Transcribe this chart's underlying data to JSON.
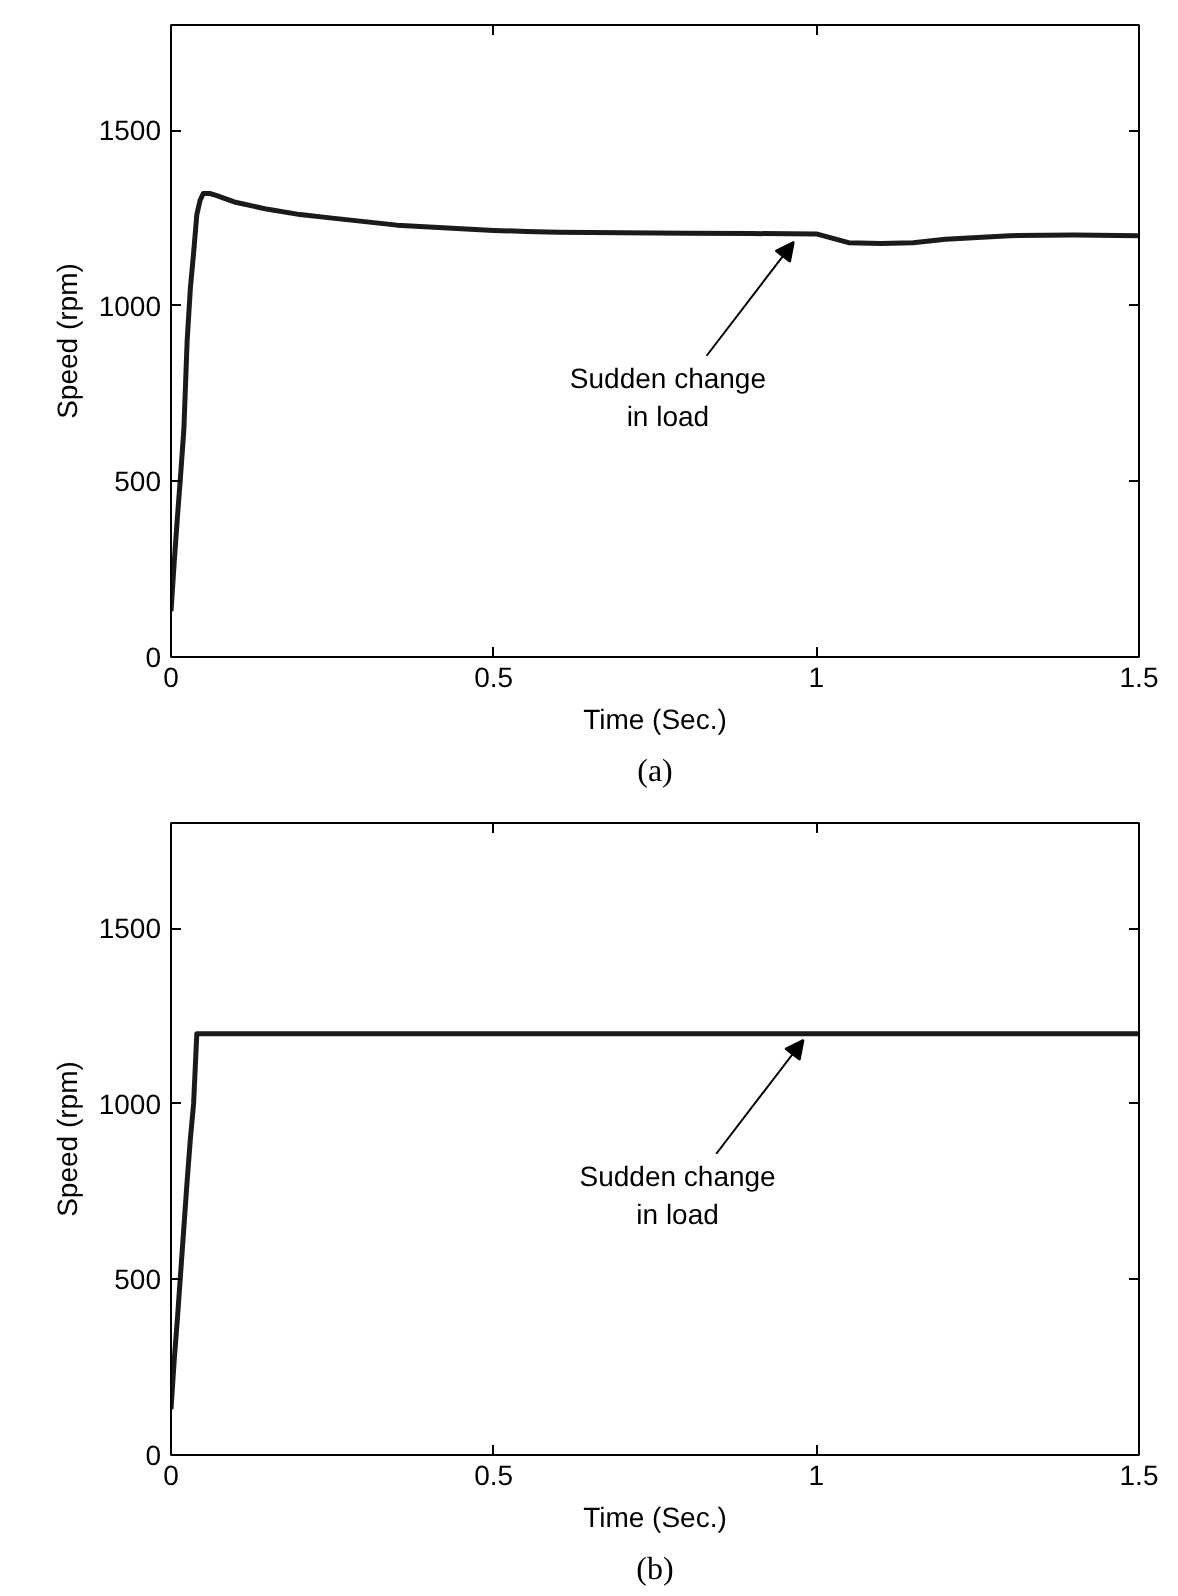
{
  "chart_data": [
    {
      "type": "line",
      "title": "(a)",
      "xlabel": "Time (Sec.)",
      "ylabel": "Speed (rpm)",
      "x": [
        0,
        0.005,
        0.01,
        0.015,
        0.02,
        0.025,
        0.03,
        0.035,
        0.04,
        0.045,
        0.05,
        0.06,
        0.07,
        0.1,
        0.15,
        0.2,
        0.25,
        0.3,
        0.35,
        0.4,
        0.45,
        0.5,
        0.55,
        0.6,
        0.7,
        0.8,
        0.9,
        1.0,
        1.02,
        1.05,
        1.1,
        1.15,
        1.2,
        1.25,
        1.3,
        1.4,
        1.5
      ],
      "series": [
        {
          "color": "#1a1a1a",
          "values": [
            130,
            270,
            400,
            520,
            650,
            900,
            1050,
            1150,
            1260,
            1300,
            1320,
            1320,
            1315,
            1295,
            1275,
            1260,
            1250,
            1240,
            1230,
            1225,
            1220,
            1215,
            1212,
            1210,
            1208,
            1207,
            1206,
            1205,
            1195,
            1180,
            1178,
            1180,
            1190,
            1195,
            1200,
            1202,
            1200
          ]
        }
      ],
      "xlim": [
        0,
        1.5
      ],
      "ylim": [
        0,
        1800
      ],
      "xticks": [
        0,
        0.5,
        1,
        1.5
      ],
      "yticks": [
        0,
        500,
        1000,
        1500
      ],
      "annotations": [
        {
          "text": "Sudden change\nin load",
          "x": 0.965,
          "y": 1200
        }
      ]
    },
    {
      "type": "line",
      "title": "(b)",
      "xlabel": "Time (Sec.)",
      "ylabel": "Speed (rpm)",
      "x": [
        0,
        0.005,
        0.01,
        0.015,
        0.02,
        0.025,
        0.03,
        0.035,
        0.04,
        0.05,
        0.5,
        1.0,
        1.5
      ],
      "series": [
        {
          "color": "#1a1a1a",
          "values": [
            130,
            270,
            390,
            520,
            650,
            780,
            900,
            1000,
            1200,
            1200,
            1200,
            1200,
            1200
          ]
        }
      ],
      "xlim": [
        0,
        1.5
      ],
      "ylim": [
        0,
        1800
      ],
      "xticks": [
        0,
        0.5,
        1,
        1.5
      ],
      "yticks": [
        0,
        500,
        1000,
        1500
      ],
      "annotations": [
        {
          "text": "Sudden change\nin load",
          "x": 0.98,
          "y": 1200
        }
      ]
    }
  ]
}
